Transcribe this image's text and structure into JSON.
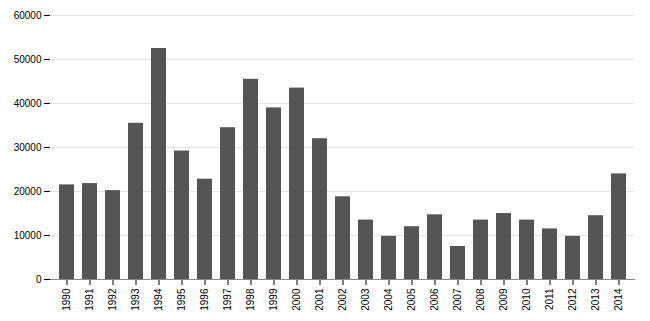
{
  "chart_data": {
    "type": "bar",
    "categories": [
      "1990",
      "1991",
      "1992",
      "1993",
      "1994",
      "1995",
      "1996",
      "1997",
      "1998",
      "1999",
      "2000",
      "2001",
      "2002",
      "2003",
      "2004",
      "2005",
      "2006",
      "2007",
      "2008",
      "2009",
      "2010",
      "2011",
      "2012",
      "2013",
      "2014"
    ],
    "values": [
      21500,
      21800,
      20200,
      35500,
      52500,
      29200,
      22800,
      34500,
      45500,
      39000,
      43500,
      32000,
      18800,
      13500,
      9800,
      12000,
      14700,
      7500,
      13500,
      15000,
      13500,
      11500,
      9800,
      14500,
      24000
    ],
    "color": "#555555",
    "ylim": [
      0,
      60000
    ],
    "yticks": [
      0,
      10000,
      20000,
      30000,
      40000,
      50000,
      60000
    ],
    "grid": true
  }
}
